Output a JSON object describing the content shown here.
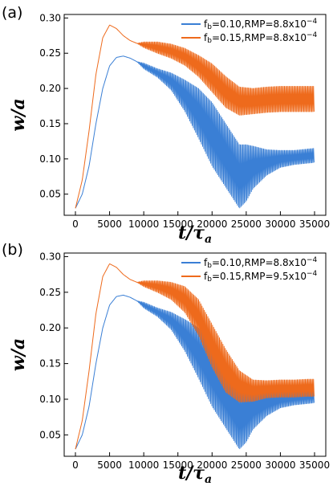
{
  "chart_data": [
    {
      "panel": "(a)",
      "type": "line",
      "xlabel": "t/τ",
      "xlabel_sub": "a",
      "ylabel": "w/a",
      "xlim": [
        0,
        35000
      ],
      "ylim": [
        0.02,
        0.305
      ],
      "xticks": [
        0,
        5000,
        10000,
        15000,
        20000,
        25000,
        30000,
        35000
      ],
      "xtick_labels": [
        "0",
        "5000",
        "10000",
        "15000",
        "20000",
        "25000",
        "30000",
        "35000"
      ],
      "yticks": [
        0.05,
        0.1,
        0.15,
        0.2,
        0.25,
        0.3
      ],
      "ytick_labels": [
        "0.05",
        "0.10",
        "0.15",
        "0.20",
        "0.25",
        "0.30"
      ],
      "grid": false,
      "legend_position": "top-right",
      "series": [
        {
          "name": "fb=0.10,RMP=8.8x10−4",
          "legend_prefix": "f",
          "legend_sub": "b",
          "legend_main": "=0.10,RMP=8.8x10",
          "legend_sup": "−4",
          "color": "#3a7fd5",
          "x": [
            0,
            1000,
            2000,
            3000,
            4000,
            5000,
            6000,
            7000,
            8000,
            9000,
            10000,
            12000,
            14000,
            16000,
            18000,
            20000,
            22000,
            23000,
            24000,
            25000,
            26000,
            28000,
            30000,
            32000,
            34000,
            35000
          ],
          "y": [
            0.03,
            0.05,
            0.09,
            0.15,
            0.2,
            0.232,
            0.244,
            0.246,
            0.243,
            0.238,
            0.232,
            0.222,
            0.21,
            0.19,
            0.165,
            0.135,
            0.105,
            0.09,
            0.075,
            0.08,
            0.088,
            0.095,
            0.1,
            0.102,
            0.104,
            0.105
          ],
          "osc_amp": [
            0,
            0,
            0,
            0,
            0,
            0,
            0,
            0,
            0,
            0,
            0.004,
            0.006,
            0.012,
            0.022,
            0.035,
            0.045,
            0.045,
            0.045,
            0.045,
            0.04,
            0.03,
            0.018,
            0.012,
            0.01,
            0.01,
            0.01
          ]
        },
        {
          "name": "fb=0.15,RMP=8.8x10−4",
          "legend_prefix": "f",
          "legend_sub": "b",
          "legend_main": "=0.15,RMP=8.8x10",
          "legend_sup": "−4",
          "color": "#ee6a1c",
          "x": [
            0,
            1000,
            2000,
            3000,
            4000,
            5000,
            6000,
            7000,
            8000,
            9000,
            10000,
            12000,
            14000,
            16000,
            18000,
            20000,
            22000,
            24000,
            26000,
            28000,
            30000,
            32000,
            34000,
            35000
          ],
          "y": [
            0.03,
            0.07,
            0.14,
            0.22,
            0.272,
            0.29,
            0.285,
            0.275,
            0.268,
            0.264,
            0.262,
            0.258,
            0.253,
            0.245,
            0.232,
            0.215,
            0.195,
            0.182,
            0.182,
            0.184,
            0.185,
            0.185,
            0.185,
            0.185
          ],
          "osc_amp": [
            0,
            0,
            0,
            0,
            0,
            0,
            0,
            0,
            0,
            0,
            0.004,
            0.008,
            0.01,
            0.012,
            0.015,
            0.02,
            0.022,
            0.02,
            0.018,
            0.018,
            0.018,
            0.018,
            0.018,
            0.018
          ]
        }
      ]
    },
    {
      "panel": "(b)",
      "type": "line",
      "xlabel": "t/τ",
      "xlabel_sub": "a",
      "ylabel": "w/a",
      "xlim": [
        0,
        35000
      ],
      "ylim": [
        0.02,
        0.305
      ],
      "xticks": [
        0,
        5000,
        10000,
        15000,
        20000,
        25000,
        30000,
        35000
      ],
      "xtick_labels": [
        "0",
        "5000",
        "10000",
        "15000",
        "20000",
        "25000",
        "30000",
        "35000"
      ],
      "yticks": [
        0.05,
        0.1,
        0.15,
        0.2,
        0.25,
        0.3
      ],
      "ytick_labels": [
        "0.05",
        "0.10",
        "0.15",
        "0.20",
        "0.25",
        "0.30"
      ],
      "grid": false,
      "legend_position": "top-right",
      "series": [
        {
          "name": "fb=0.10,RMP=8.8x10−4",
          "legend_prefix": "f",
          "legend_sub": "b",
          "legend_main": "=0.10,RMP=8.8x10",
          "legend_sup": "−4",
          "color": "#3a7fd5",
          "x": [
            0,
            1000,
            2000,
            3000,
            4000,
            5000,
            6000,
            7000,
            8000,
            9000,
            10000,
            12000,
            14000,
            16000,
            18000,
            20000,
            22000,
            23000,
            24000,
            25000,
            26000,
            28000,
            30000,
            32000,
            34000,
            35000
          ],
          "y": [
            0.03,
            0.05,
            0.09,
            0.15,
            0.2,
            0.232,
            0.244,
            0.246,
            0.243,
            0.238,
            0.232,
            0.222,
            0.21,
            0.19,
            0.165,
            0.135,
            0.105,
            0.09,
            0.075,
            0.08,
            0.088,
            0.095,
            0.1,
            0.102,
            0.104,
            0.105
          ],
          "osc_amp": [
            0,
            0,
            0,
            0,
            0,
            0,
            0,
            0,
            0,
            0,
            0.004,
            0.006,
            0.012,
            0.022,
            0.035,
            0.045,
            0.045,
            0.045,
            0.045,
            0.04,
            0.03,
            0.018,
            0.012,
            0.01,
            0.01,
            0.01
          ]
        },
        {
          "name": "fb=0.15,RMP=9.5x10−4",
          "legend_prefix": "f",
          "legend_sub": "b",
          "legend_main": "=0.15,RMP=9.5x10",
          "legend_sup": "−4",
          "color": "#ee6a1c",
          "x": [
            0,
            1000,
            2000,
            3000,
            4000,
            5000,
            6000,
            7000,
            8000,
            9000,
            10000,
            12000,
            14000,
            16000,
            18000,
            20000,
            22000,
            24000,
            26000,
            28000,
            30000,
            32000,
            34000,
            35000
          ],
          "y": [
            0.03,
            0.07,
            0.14,
            0.22,
            0.272,
            0.29,
            0.285,
            0.275,
            0.268,
            0.264,
            0.262,
            0.258,
            0.252,
            0.24,
            0.215,
            0.175,
            0.14,
            0.118,
            0.112,
            0.114,
            0.115,
            0.115,
            0.116,
            0.116
          ],
          "osc_amp": [
            0,
            0,
            0,
            0,
            0,
            0,
            0,
            0,
            0,
            0,
            0.004,
            0.008,
            0.012,
            0.018,
            0.025,
            0.03,
            0.03,
            0.022,
            0.015,
            0.012,
            0.012,
            0.012,
            0.012,
            0.012
          ]
        }
      ]
    }
  ]
}
